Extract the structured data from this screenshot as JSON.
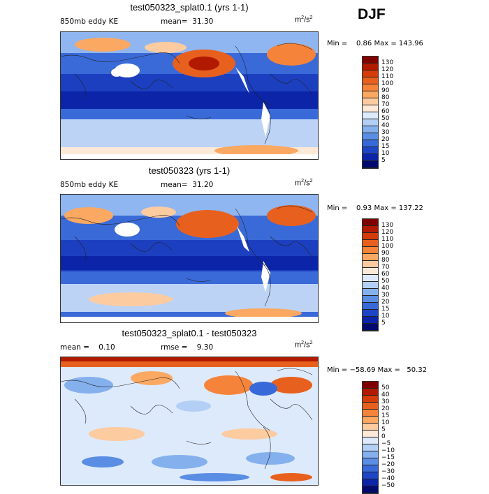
{
  "season": "DJF",
  "panels": [
    {
      "title": "test050323_splat0.1 (yrs 1-1)",
      "left_label": "850mb eddy KE",
      "center_label": "mean=  31.30",
      "units": "m",
      "units_sup": "2",
      "units_tail": "/s",
      "units_tail_sup": "2",
      "minmax": "Min =    0.86 Max = 143.96",
      "colorbar": {
        "labels": [
          "130",
          "120",
          "110",
          "100",
          "90",
          "80",
          "70",
          "60",
          "50",
          "40",
          "30",
          "20",
          "15",
          "10",
          "5"
        ],
        "colors": [
          "#7f0000",
          "#b21a00",
          "#d43d0a",
          "#e8601e",
          "#f5843a",
          "#fba862",
          "#fdcba0",
          "#fde9d7",
          "#ddeafb",
          "#b3cff5",
          "#85b0ee",
          "#5a8de4",
          "#3869d8",
          "#1c46c6",
          "#0b24a8",
          "#020a6e"
        ]
      },
      "chart_data": {
        "type": "heatmap",
        "variable": "850mb eddy KE",
        "units": "m2/s2",
        "mean": 31.3,
        "min": 0.86,
        "max": 143.96,
        "levels": [
          5,
          10,
          15,
          20,
          30,
          40,
          50,
          60,
          70,
          80,
          90,
          100,
          110,
          120,
          130
        ]
      }
    },
    {
      "title": "test050323 (yrs 1-1)",
      "left_label": "850mb eddy KE",
      "center_label": "mean=  31.20",
      "units": "m",
      "units_sup": "2",
      "units_tail": "/s",
      "units_tail_sup": "2",
      "minmax": "Min =    0.93 Max = 137.22",
      "colorbar": {
        "labels": [
          "130",
          "120",
          "110",
          "100",
          "90",
          "80",
          "70",
          "60",
          "50",
          "40",
          "30",
          "20",
          "15",
          "10",
          "5"
        ],
        "colors": [
          "#7f0000",
          "#b21a00",
          "#d43d0a",
          "#e8601e",
          "#f5843a",
          "#fba862",
          "#fdcba0",
          "#fde9d7",
          "#ddeafb",
          "#b3cff5",
          "#85b0ee",
          "#5a8de4",
          "#3869d8",
          "#1c46c6",
          "#0b24a8",
          "#020a6e"
        ]
      },
      "chart_data": {
        "type": "heatmap",
        "variable": "850mb eddy KE",
        "units": "m2/s2",
        "mean": 31.2,
        "min": 0.93,
        "max": 137.22,
        "levels": [
          5,
          10,
          15,
          20,
          30,
          40,
          50,
          60,
          70,
          80,
          90,
          100,
          110,
          120,
          130
        ]
      }
    },
    {
      "title": "test050323_splat0.1 - test050323",
      "left_label": "mean =    0.10",
      "center_label": "rmse =    9.30",
      "units": "m",
      "units_sup": "2",
      "units_tail": "/s",
      "units_tail_sup": "2",
      "minmax": "Min = −58.69 Max =   50.32",
      "colorbar": {
        "labels": [
          "50",
          "40",
          "30",
          "20",
          "15",
          "10",
          "5",
          "0",
          "−5",
          "−10",
          "−15",
          "−20",
          "−30",
          "−40",
          "−50"
        ],
        "colors": [
          "#7f0000",
          "#b21a00",
          "#d43d0a",
          "#e8601e",
          "#f5843a",
          "#fba862",
          "#fdcba0",
          "#fde9d7",
          "#ddeafb",
          "#b3cff5",
          "#85b0ee",
          "#5a8de4",
          "#3869d8",
          "#1c46c6",
          "#0b24a8",
          "#020a6e"
        ]
      },
      "chart_data": {
        "type": "heatmap",
        "variable": "difference",
        "units": "m2/s2",
        "mean": 0.1,
        "rmse": 9.3,
        "min": -58.69,
        "max": 50.32,
        "levels": [
          -50,
          -40,
          -30,
          -20,
          -15,
          -10,
          -5,
          0,
          5,
          10,
          15,
          20,
          30,
          40,
          50
        ]
      }
    }
  ]
}
